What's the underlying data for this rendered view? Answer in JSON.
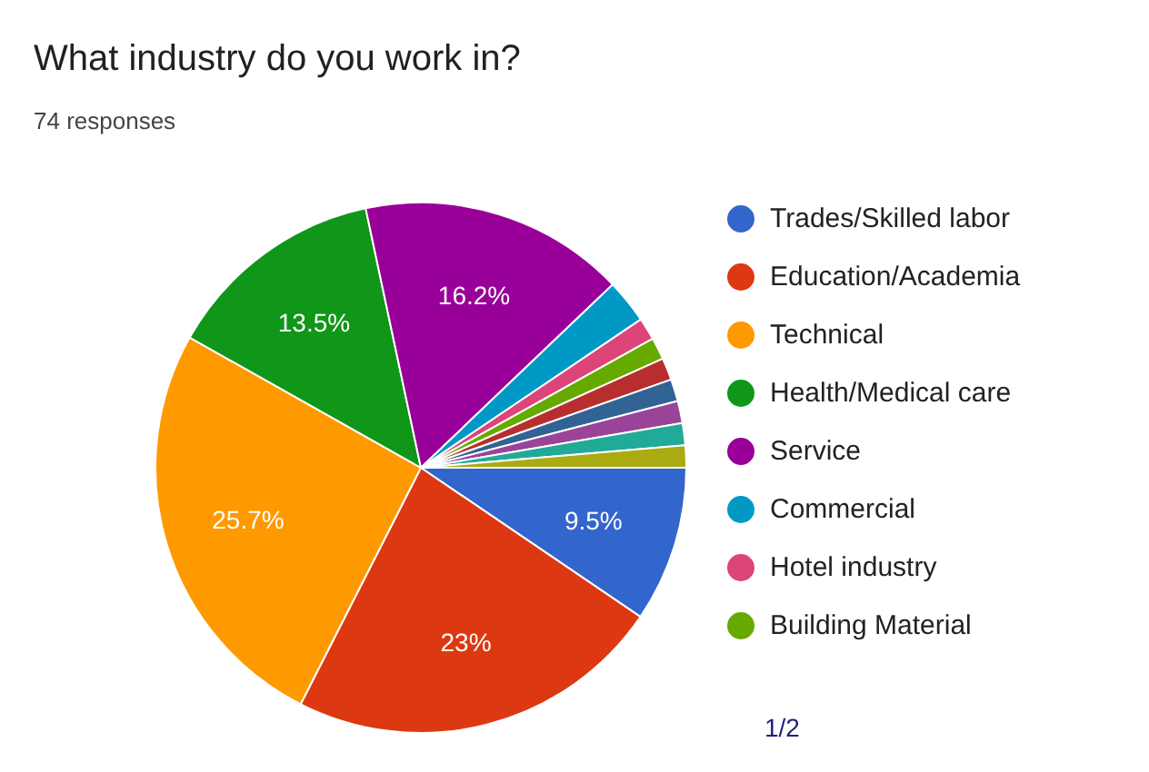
{
  "chart_data": {
    "type": "pie",
    "title": "What industry do you work in?",
    "subtitle": "74 responses",
    "categories": [
      "Trades/Skilled labor",
      "Education/Academia",
      "Technical",
      "Health/Medical care",
      "Service",
      "Commercial",
      "Hotel industry",
      "Building Material",
      null,
      null,
      null,
      null,
      null
    ],
    "values": [
      9.5,
      23,
      25.7,
      13.5,
      16.2,
      2.7,
      1.35,
      1.35,
      1.35,
      1.35,
      1.35,
      1.35,
      1.35
    ],
    "colors": [
      "#3366cc",
      "#dc3912",
      "#ff9900",
      "#109618",
      "#990099",
      "#0099c6",
      "#dd4477",
      "#66aa00",
      "#b82e2e",
      "#316395",
      "#994499",
      "#22aa99",
      "#aaaa11"
    ],
    "value_labels": [
      "9.5%",
      "23%",
      "25.7%",
      "13.5%",
      "16.2%",
      null,
      null,
      null,
      null,
      null,
      null,
      null,
      null
    ],
    "legend": "right",
    "annotations": [
      "1/2"
    ]
  }
}
